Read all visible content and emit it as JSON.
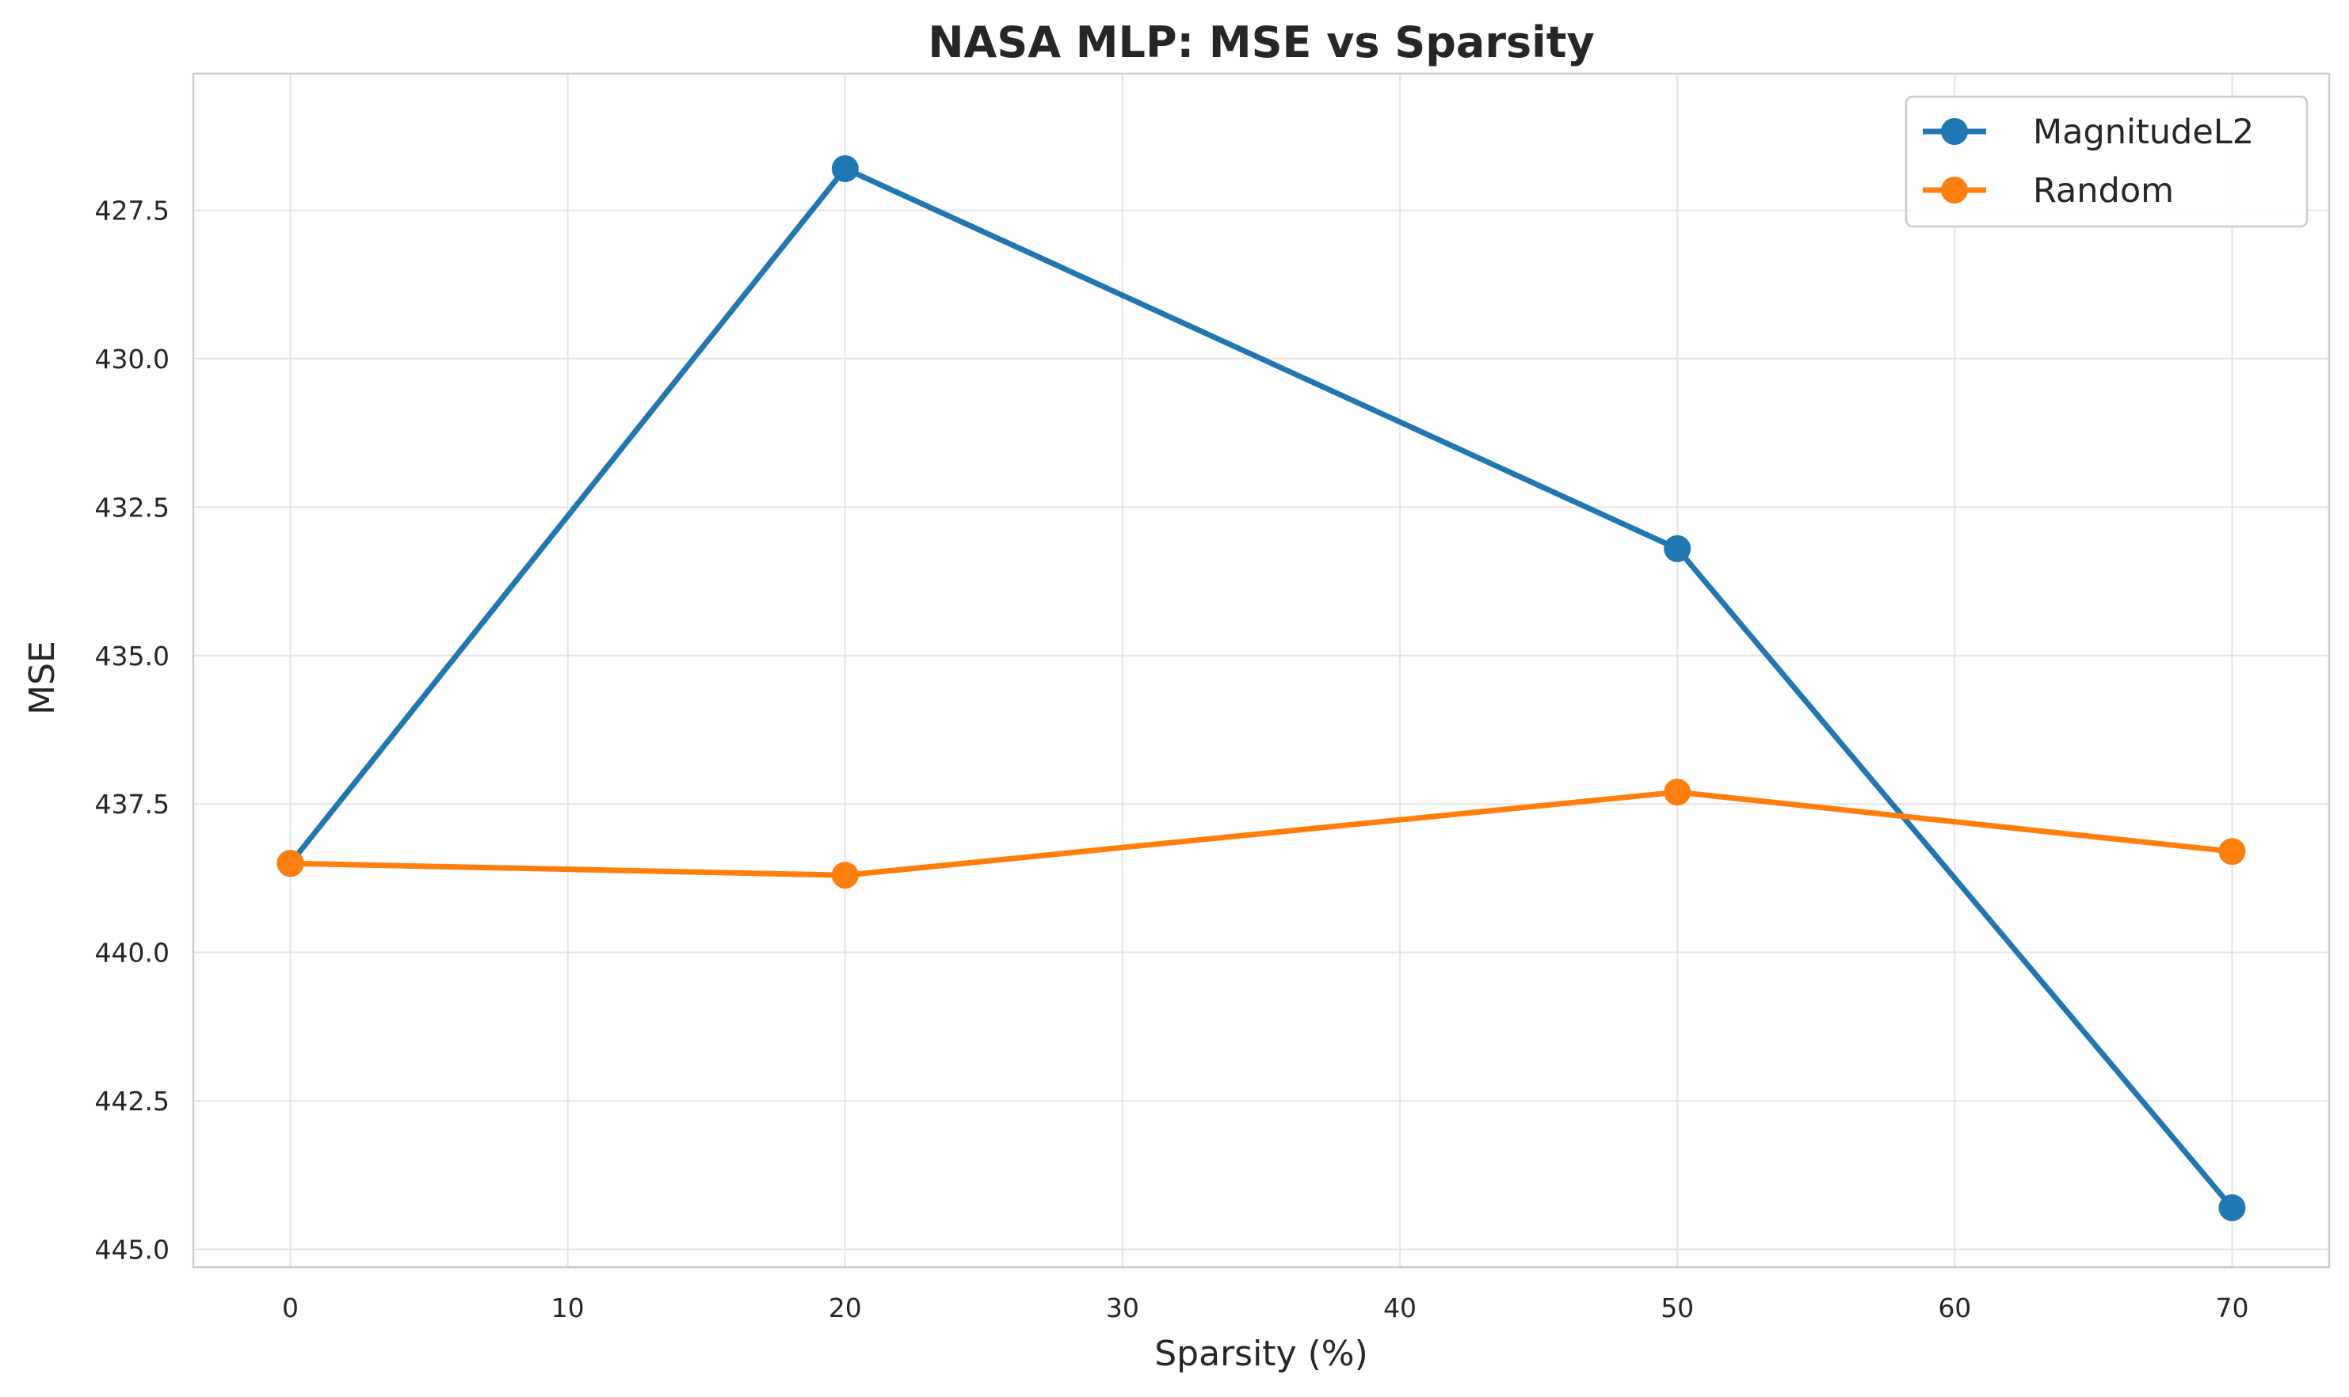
{
  "chart_data": {
    "type": "line",
    "title": "NASA MLP: MSE vs Sparsity",
    "xlabel": "Sparsity (%)",
    "ylabel": "MSE",
    "x": [
      0,
      20,
      50,
      70
    ],
    "xlim": [
      -3.5,
      73.5
    ],
    "ylim": [
      445.3,
      425.2
    ],
    "y_inverted": true,
    "xticks": [
      0,
      10,
      20,
      30,
      40,
      50,
      60,
      70
    ],
    "xtick_labels": [
      "0",
      "10",
      "20",
      "30",
      "40",
      "50",
      "60",
      "70"
    ],
    "yticks": [
      427.5,
      430.0,
      432.5,
      435.0,
      437.5,
      440.0,
      442.5,
      445.0
    ],
    "ytick_labels": [
      "427.5",
      "430.0",
      "432.5",
      "435.0",
      "437.5",
      "440.0",
      "442.5",
      "445.0"
    ],
    "grid": true,
    "legend_position": "top-right",
    "series": [
      {
        "name": "MagnitudeL2",
        "color": "#1f77b4",
        "values": [
          438.5,
          426.8,
          433.2,
          444.3
        ]
      },
      {
        "name": "Random",
        "color": "#ff7f0e",
        "values": [
          438.5,
          438.7,
          437.3,
          438.3
        ]
      }
    ]
  }
}
